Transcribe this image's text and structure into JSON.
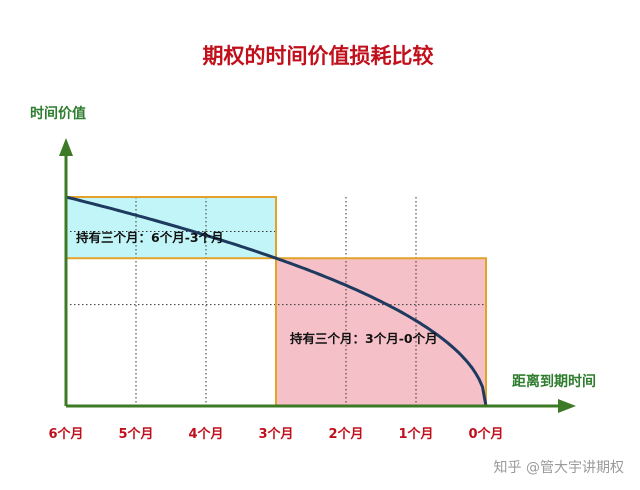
{
  "title": "期权的时间价值损耗比较",
  "y_axis_label": "时间价值",
  "x_axis_label": "距离到期时间",
  "x_ticks": [
    "6个月",
    "5个月",
    "4个月",
    "3个月",
    "2个月",
    "1个月",
    "0个月"
  ],
  "regions": [
    {
      "label": "持有三个月：6个月-3个月",
      "from_month": 6,
      "to_month": 3,
      "fill": "#c2f5f7",
      "value_top": 1.0,
      "value_bottom": 0.707
    },
    {
      "label": "持有三个月：3个月-0个月",
      "from_month": 3,
      "to_month": 0,
      "fill": "#f5c0c8",
      "value_top": 0.707,
      "value_bottom": 0.0
    }
  ],
  "curve": {
    "description_formula": "value = sqrt(months_remaining / 6)",
    "color": "#1e3a5f"
  },
  "colors": {
    "title": "#c0101c",
    "axis": "#3d7a25",
    "axis_label": "#2e7d2e",
    "box_border": "#e3a32a",
    "grid": "#333333"
  },
  "watermark": "知乎 @管大宇讲期权"
}
